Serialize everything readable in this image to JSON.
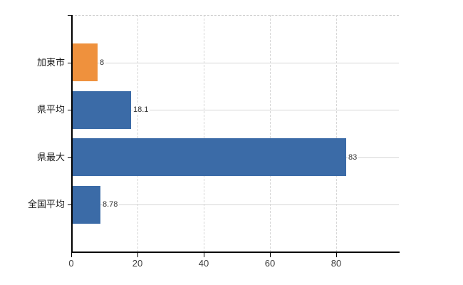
{
  "chart_data": {
    "type": "bar",
    "orientation": "horizontal",
    "title": "",
    "xlabel": "",
    "ylabel": "",
    "categories": [
      "加東市",
      "県平均",
      "県最大",
      "全国平均"
    ],
    "values": [
      8,
      18.1,
      83,
      8.78
    ],
    "value_labels": [
      "8",
      "18.1",
      "83",
      "8.78"
    ],
    "series": [
      {
        "name": "value",
        "values": [
          8,
          18.1,
          83,
          8.78
        ]
      }
    ],
    "bar_colors": [
      "#ef913d",
      "#3b6ba7",
      "#3b6ba7",
      "#3b6ba7"
    ],
    "xlim": [
      0,
      99
    ],
    "x_ticks": [
      0,
      20,
      40,
      60,
      80
    ],
    "x_tick_labels": [
      "0",
      "20",
      "40",
      "60",
      "80"
    ],
    "grid": true,
    "grid_vertical_style": "dashed",
    "grid_horizontal_style": "solid",
    "legend": "none"
  },
  "colors": {
    "highlight_bar": "#ef913d",
    "default_bar": "#3b6ba7",
    "grid_line": "#d6d6d6",
    "top_border": "#c9c9c9",
    "axis_line": "#000000",
    "tick_text": "#404040",
    "category_text": "#1a1a1a",
    "value_text": "#333333",
    "background": "#ffffff"
  }
}
